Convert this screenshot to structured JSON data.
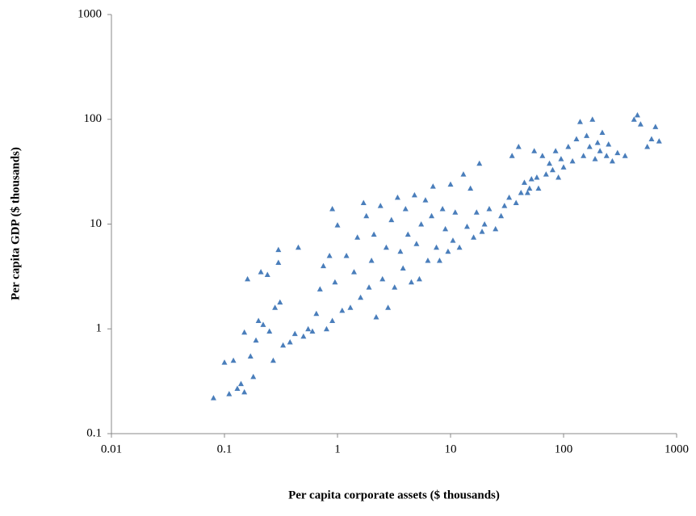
{
  "chart_data": {
    "type": "scatter",
    "x_label": "Per capita corporate assets ($ thousands)",
    "y_label": "Per capita GDP ($ thousands)",
    "log_x": true,
    "log_y": true,
    "grid": false,
    "color": "#4a7ebb",
    "marker": "triangle",
    "xlim": [
      0.01,
      1000
    ],
    "xticks": [
      0.01,
      0.1,
      1,
      10,
      100,
      1000
    ],
    "ylim": [
      0.1,
      1000
    ],
    "yticks": [
      0.1,
      1,
      10,
      100,
      1000
    ],
    "x": [
      0.08,
      0.1,
      0.11,
      0.12,
      0.13,
      0.14,
      0.15,
      0.15,
      0.16,
      0.17,
      0.18,
      0.19,
      0.2,
      0.21,
      0.22,
      0.24,
      0.25,
      0.27,
      0.28,
      0.3,
      0.3,
      0.31,
      0.33,
      0.38,
      0.42,
      0.45,
      0.5,
      0.55,
      0.6,
      0.65,
      0.7,
      0.75,
      0.8,
      0.85,
      0.9,
      0.9,
      0.95,
      1.0,
      1.1,
      1.2,
      1.3,
      1.4,
      1.5,
      1.6,
      1.7,
      1.8,
      1.9,
      2.0,
      2.1,
      2.2,
      2.4,
      2.5,
      2.7,
      2.8,
      3.0,
      3.2,
      3.4,
      3.6,
      3.8,
      4.0,
      4.2,
      4.5,
      4.8,
      5.0,
      5.3,
      5.5,
      6.0,
      6.3,
      6.8,
      7.0,
      7.5,
      8.0,
      8.5,
      9.0,
      9.5,
      10,
      10.5,
      11,
      12,
      13,
      14,
      15,
      16,
      17,
      18,
      19,
      20,
      22,
      25,
      28,
      30,
      33,
      35,
      38,
      40,
      42,
      45,
      48,
      50,
      52,
      55,
      58,
      60,
      65,
      70,
      75,
      80,
      85,
      90,
      95,
      100,
      110,
      120,
      130,
      140,
      150,
      160,
      170,
      180,
      190,
      200,
      210,
      220,
      240,
      250,
      270,
      300,
      350,
      420,
      450,
      480,
      550,
      600,
      650,
      700
    ],
    "values": [
      0.22,
      0.48,
      0.24,
      0.5,
      0.27,
      0.3,
      0.25,
      0.93,
      3.0,
      0.55,
      0.35,
      0.78,
      1.2,
      3.5,
      1.1,
      3.3,
      0.95,
      0.5,
      1.6,
      5.7,
      4.3,
      1.8,
      0.7,
      0.75,
      0.9,
      6.0,
      0.85,
      1.0,
      0.95,
      1.4,
      2.4,
      4.0,
      1.0,
      5.0,
      1.2,
      14,
      2.8,
      9.8,
      1.5,
      5.0,
      1.6,
      3.5,
      7.5,
      2.0,
      16,
      12,
      2.5,
      4.5,
      8.0,
      1.3,
      15,
      3.0,
      6.0,
      1.6,
      11,
      2.5,
      18,
      5.5,
      3.8,
      14,
      8.0,
      2.8,
      19,
      6.5,
      3.0,
      10,
      17,
      4.5,
      12,
      23,
      6.0,
      4.5,
      14,
      9.0,
      5.5,
      24,
      7.0,
      13,
      6.0,
      30,
      9.5,
      22,
      7.5,
      13,
      38,
      8.5,
      10,
      14,
      9.0,
      12,
      15,
      18,
      45,
      16,
      55,
      20,
      25,
      20,
      22,
      27,
      50,
      28,
      22,
      45,
      30,
      38,
      33,
      50,
      28,
      42,
      35,
      55,
      40,
      65,
      95,
      45,
      70,
      55,
      100,
      42,
      60,
      50,
      75,
      45,
      58,
      40,
      48,
      45,
      100,
      110,
      90,
      55,
      65,
      85,
      62
    ]
  }
}
